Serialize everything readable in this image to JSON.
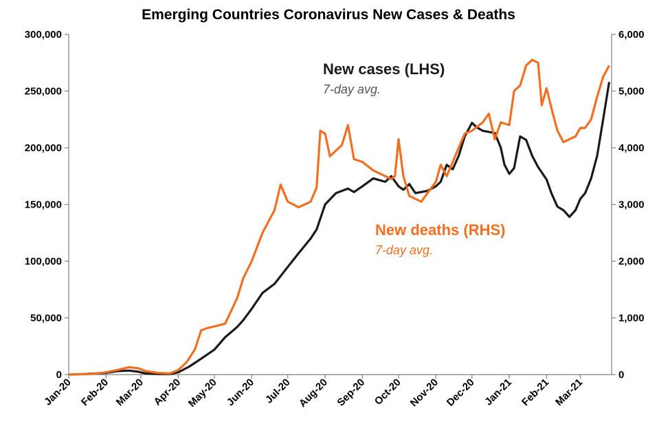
{
  "chart_data": {
    "type": "line",
    "title": "Emerging Countries Coronavirus New Cases & Deaths",
    "xlabel": "",
    "ylabel": "",
    "x_tick_labels": [
      "Jan-20",
      "Feb-20",
      "Mar-20",
      "Apr-20",
      "May-20",
      "Jun-20",
      "Jul-20",
      "Aug-20",
      "Sep-20",
      "Oct-20",
      "Nov-20",
      "Dec-20",
      "Jan-21",
      "Feb-21",
      "Mar-21"
    ],
    "xlim": [
      "2020-01-01",
      "2021-03-27"
    ],
    "y_left": {
      "lim": [
        0,
        300000
      ],
      "ticks": [
        0,
        50000,
        100000,
        150000,
        200000,
        250000,
        300000
      ],
      "tick_labels": [
        "0",
        "50,000",
        "100,000",
        "150,000",
        "200,000",
        "250,000",
        "300,000"
      ]
    },
    "y_right": {
      "lim": [
        0,
        6000
      ],
      "ticks": [
        0,
        1000,
        2000,
        3000,
        4000,
        5000,
        6000
      ],
      "tick_labels": [
        "0",
        "1,000",
        "2,000",
        "3,000",
        "4,000",
        "5,000",
        "6,000"
      ]
    },
    "grid": false,
    "series": [
      {
        "name": "New cases (LHS)",
        "note": "7-day avg.",
        "axis": "left",
        "color": "#1a1a1a",
        "points": [
          [
            "2020-01-01",
            0
          ],
          [
            "2020-01-15",
            500
          ],
          [
            "2020-02-01",
            1500
          ],
          [
            "2020-02-10",
            3000
          ],
          [
            "2020-02-20",
            3500
          ],
          [
            "2020-02-28",
            2500
          ],
          [
            "2020-03-05",
            1000
          ],
          [
            "2020-03-15",
            500
          ],
          [
            "2020-03-25",
            500
          ],
          [
            "2020-04-01",
            2000
          ],
          [
            "2020-04-10",
            7000
          ],
          [
            "2020-04-20",
            14000
          ],
          [
            "2020-05-01",
            22000
          ],
          [
            "2020-05-10",
            33000
          ],
          [
            "2020-05-20",
            42000
          ],
          [
            "2020-05-25",
            48000
          ],
          [
            "2020-06-01",
            58000
          ],
          [
            "2020-06-10",
            72000
          ],
          [
            "2020-06-20",
            80000
          ],
          [
            "2020-07-01",
            95000
          ],
          [
            "2020-07-10",
            107000
          ],
          [
            "2020-07-20",
            120000
          ],
          [
            "2020-07-25",
            128000
          ],
          [
            "2020-08-01",
            150000
          ],
          [
            "2020-08-10",
            160000
          ],
          [
            "2020-08-20",
            164000
          ],
          [
            "2020-08-25",
            161000
          ],
          [
            "2020-09-01",
            166000
          ],
          [
            "2020-09-10",
            173000
          ],
          [
            "2020-09-20",
            170000
          ],
          [
            "2020-09-25",
            175000
          ],
          [
            "2020-10-01",
            166000
          ],
          [
            "2020-10-05",
            163000
          ],
          [
            "2020-10-10",
            168000
          ],
          [
            "2020-10-15",
            160000
          ],
          [
            "2020-10-25",
            162000
          ],
          [
            "2020-11-01",
            166000
          ],
          [
            "2020-11-05",
            170000
          ],
          [
            "2020-11-10",
            185000
          ],
          [
            "2020-11-15",
            181000
          ],
          [
            "2020-11-20",
            193000
          ],
          [
            "2020-11-25",
            210000
          ],
          [
            "2020-12-01",
            222000
          ],
          [
            "2020-12-05",
            218000
          ],
          [
            "2020-12-10",
            215000
          ],
          [
            "2020-12-20",
            213000
          ],
          [
            "2020-12-25",
            200000
          ],
          [
            "2020-12-28",
            185000
          ],
          [
            "2021-01-01",
            177000
          ],
          [
            "2021-01-05",
            182000
          ],
          [
            "2021-01-10",
            210000
          ],
          [
            "2021-01-15",
            207000
          ],
          [
            "2021-01-20",
            193000
          ],
          [
            "2021-01-25",
            183000
          ],
          [
            "2021-02-01",
            172000
          ],
          [
            "2021-02-05",
            160000
          ],
          [
            "2021-02-10",
            148000
          ],
          [
            "2021-02-15",
            145000
          ],
          [
            "2021-02-20",
            139000
          ],
          [
            "2021-02-25",
            145000
          ],
          [
            "2021-03-01",
            155000
          ],
          [
            "2021-03-05",
            160000
          ],
          [
            "2021-03-10",
            173000
          ],
          [
            "2021-03-15",
            193000
          ],
          [
            "2021-03-20",
            225000
          ],
          [
            "2021-03-25",
            258000
          ]
        ]
      },
      {
        "name": "New deaths (RHS)",
        "note": "7-day avg.",
        "axis": "right",
        "color": "#f26f21",
        "points": [
          [
            "2020-01-01",
            0
          ],
          [
            "2020-01-20",
            10
          ],
          [
            "2020-02-01",
            40
          ],
          [
            "2020-02-10",
            80
          ],
          [
            "2020-02-20",
            130
          ],
          [
            "2020-02-28",
            110
          ],
          [
            "2020-03-05",
            60
          ],
          [
            "2020-03-15",
            30
          ],
          [
            "2020-03-25",
            20
          ],
          [
            "2020-04-01",
            80
          ],
          [
            "2020-04-08",
            220
          ],
          [
            "2020-04-15",
            450
          ],
          [
            "2020-04-20",
            780
          ],
          [
            "2020-04-25",
            820
          ],
          [
            "2020-05-01",
            850
          ],
          [
            "2020-05-10",
            900
          ],
          [
            "2020-05-20",
            1350
          ],
          [
            "2020-05-25",
            1700
          ],
          [
            "2020-06-01",
            2000
          ],
          [
            "2020-06-10",
            2500
          ],
          [
            "2020-06-20",
            2900
          ],
          [
            "2020-06-25",
            3350
          ],
          [
            "2020-07-01",
            3050
          ],
          [
            "2020-07-10",
            2950
          ],
          [
            "2020-07-20",
            3050
          ],
          [
            "2020-07-25",
            3300
          ],
          [
            "2020-07-28",
            4300
          ],
          [
            "2020-08-01",
            4250
          ],
          [
            "2020-08-05",
            3850
          ],
          [
            "2020-08-15",
            4050
          ],
          [
            "2020-08-20",
            4400
          ],
          [
            "2020-08-25",
            3800
          ],
          [
            "2020-09-01",
            3750
          ],
          [
            "2020-09-10",
            3600
          ],
          [
            "2020-09-15",
            3550
          ],
          [
            "2020-09-20",
            3500
          ],
          [
            "2020-09-25",
            3450
          ],
          [
            "2020-09-28",
            3500
          ],
          [
            "2020-10-01",
            4150
          ],
          [
            "2020-10-05",
            3500
          ],
          [
            "2020-10-10",
            3150
          ],
          [
            "2020-10-15",
            3100
          ],
          [
            "2020-10-20",
            3050
          ],
          [
            "2020-10-25",
            3200
          ],
          [
            "2020-11-01",
            3400
          ],
          [
            "2020-11-05",
            3700
          ],
          [
            "2020-11-10",
            3500
          ],
          [
            "2020-11-15",
            3750
          ],
          [
            "2020-11-20",
            4000
          ],
          [
            "2020-11-25",
            4250
          ],
          [
            "2020-12-01",
            4300
          ],
          [
            "2020-12-10",
            4450
          ],
          [
            "2020-12-15",
            4600
          ],
          [
            "2020-12-20",
            4150
          ],
          [
            "2020-12-25",
            4450
          ],
          [
            "2021-01-01",
            4400
          ],
          [
            "2021-01-05",
            5000
          ],
          [
            "2021-01-10",
            5100
          ],
          [
            "2021-01-15",
            5450
          ],
          [
            "2021-01-20",
            5550
          ],
          [
            "2021-01-25",
            5500
          ],
          [
            "2021-01-28",
            4750
          ],
          [
            "2021-02-01",
            5050
          ],
          [
            "2021-02-05",
            4700
          ],
          [
            "2021-02-10",
            4300
          ],
          [
            "2021-02-15",
            4100
          ],
          [
            "2021-02-20",
            4150
          ],
          [
            "2021-02-25",
            4200
          ],
          [
            "2021-03-01",
            4350
          ],
          [
            "2021-03-05",
            4350
          ],
          [
            "2021-03-10",
            4500
          ],
          [
            "2021-03-15",
            4900
          ],
          [
            "2021-03-20",
            5250
          ],
          [
            "2021-03-25",
            5450
          ]
        ]
      }
    ]
  }
}
